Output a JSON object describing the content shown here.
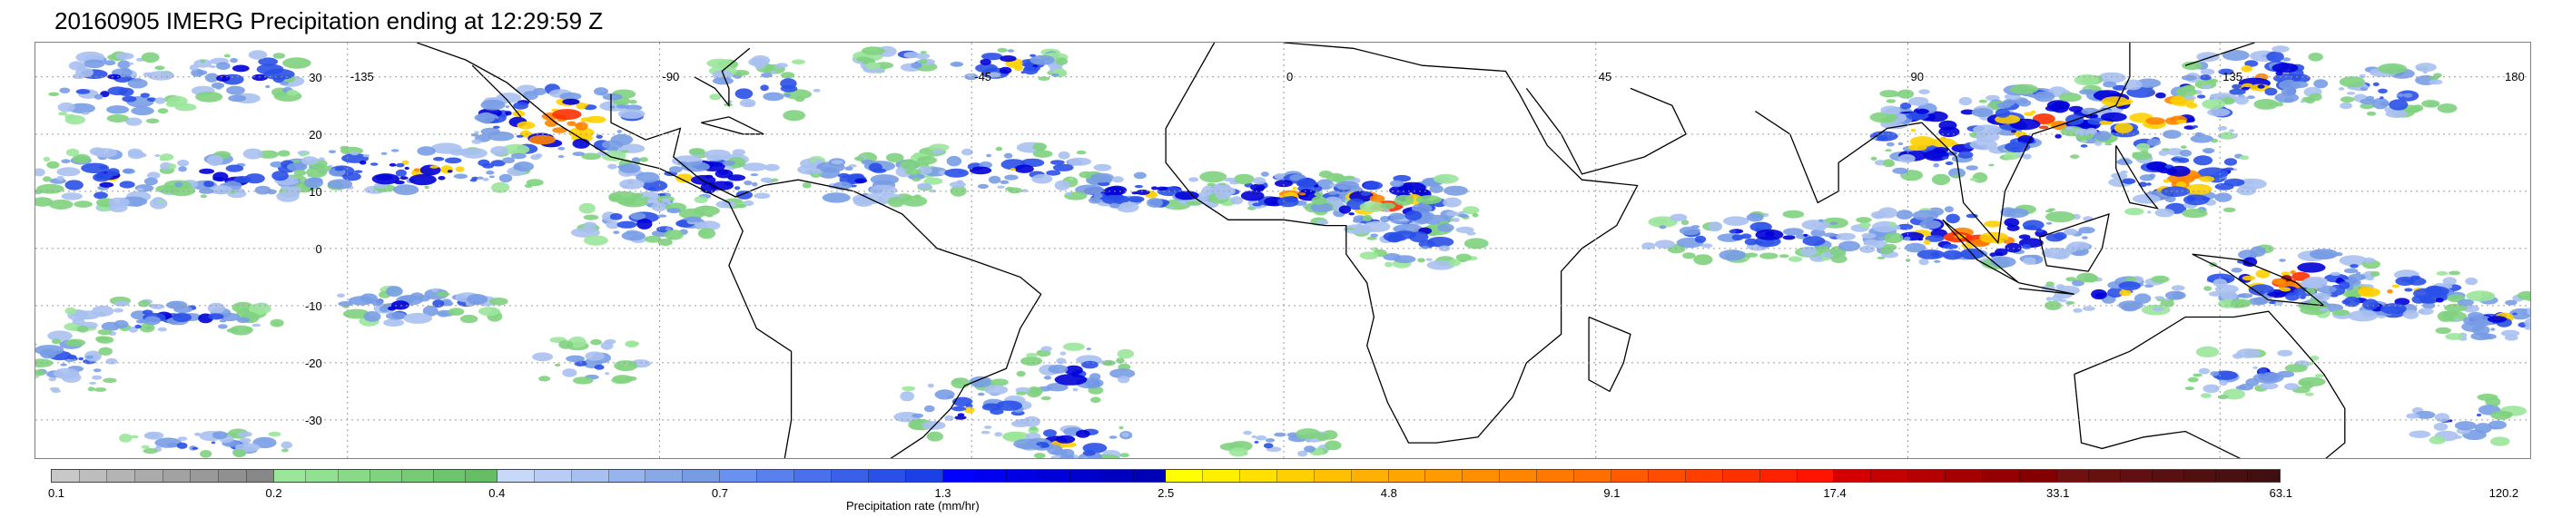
{
  "title": "20160905 IMERG Precipitation ending at 12:29:59 Z",
  "map": {
    "lon_labels": [
      "-135",
      "-90",
      "-45",
      "0",
      "45",
      "90",
      "135",
      "180"
    ],
    "lat_labels": [
      "30",
      "20",
      "10",
      "0",
      "-10",
      "-20",
      "-30"
    ],
    "lon_values": [
      -135,
      -90,
      -45,
      0,
      45,
      90,
      135,
      180
    ],
    "lat_values": [
      30,
      20,
      10,
      0,
      -10,
      -20,
      -30
    ],
    "lon_range": [
      -180,
      180
    ],
    "lat_range": [
      -37,
      36
    ],
    "grid": true,
    "grid_style": "dotted",
    "background": "#ffffff",
    "coastline_color": "#000000"
  },
  "colorbar": {
    "label": "Precipitation rate (mm/hr)",
    "tick_labels": [
      "0.1",
      "0.2",
      "0.4",
      "0.7",
      "1.3",
      "2.5",
      "4.8",
      "9.1",
      "17.4",
      "33.1",
      "63.1",
      "120.2"
    ],
    "groups": [
      {
        "count": 8,
        "colors": [
          "#c8c8c8",
          "#bdbdbd",
          "#b4b4b4",
          "#ababab",
          "#a2a2a2",
          "#999999",
          "#909090",
          "#878787"
        ]
      },
      {
        "count": 7,
        "colors": [
          "#9be69b",
          "#92e092",
          "#88d988",
          "#7fd27f",
          "#77cb77",
          "#6ec46e",
          "#65bd65"
        ]
      },
      {
        "count": 6,
        "colors": [
          "#c8d8f8",
          "#b8ccf4",
          "#a8c0f0",
          "#98b4ec",
          "#88a8e8",
          "#789ce4"
        ]
      },
      {
        "count": 6,
        "colors": [
          "#6a90f0",
          "#5a80ee",
          "#4a70ec",
          "#3a60ea",
          "#2a50e8",
          "#1a40e6"
        ]
      },
      {
        "count": 7,
        "colors": [
          "#0000ff",
          "#0000f0",
          "#0000e4",
          "#0000d8",
          "#0000cc",
          "#0000c0",
          "#0000b4"
        ]
      },
      {
        "count": 6,
        "colors": [
          "#ffff00",
          "#fff000",
          "#ffe000",
          "#ffd000",
          "#ffc000",
          "#ffb000"
        ]
      },
      {
        "count": 6,
        "colors": [
          "#ffa500",
          "#ff9a00",
          "#ff8f00",
          "#ff8400",
          "#ff7900",
          "#ff6e00"
        ]
      },
      {
        "count": 6,
        "colors": [
          "#ff5a00",
          "#ff4c00",
          "#ff3e00",
          "#ff3000",
          "#ff2200",
          "#ff1400"
        ]
      },
      {
        "count": 6,
        "colors": [
          "#d40000",
          "#c40000",
          "#b40000",
          "#a40000",
          "#940000",
          "#840000"
        ]
      },
      {
        "count": 7,
        "colors": [
          "#701010",
          "#681010",
          "#601010",
          "#581010",
          "#501010",
          "#481010",
          "#401010"
        ]
      }
    ]
  }
}
